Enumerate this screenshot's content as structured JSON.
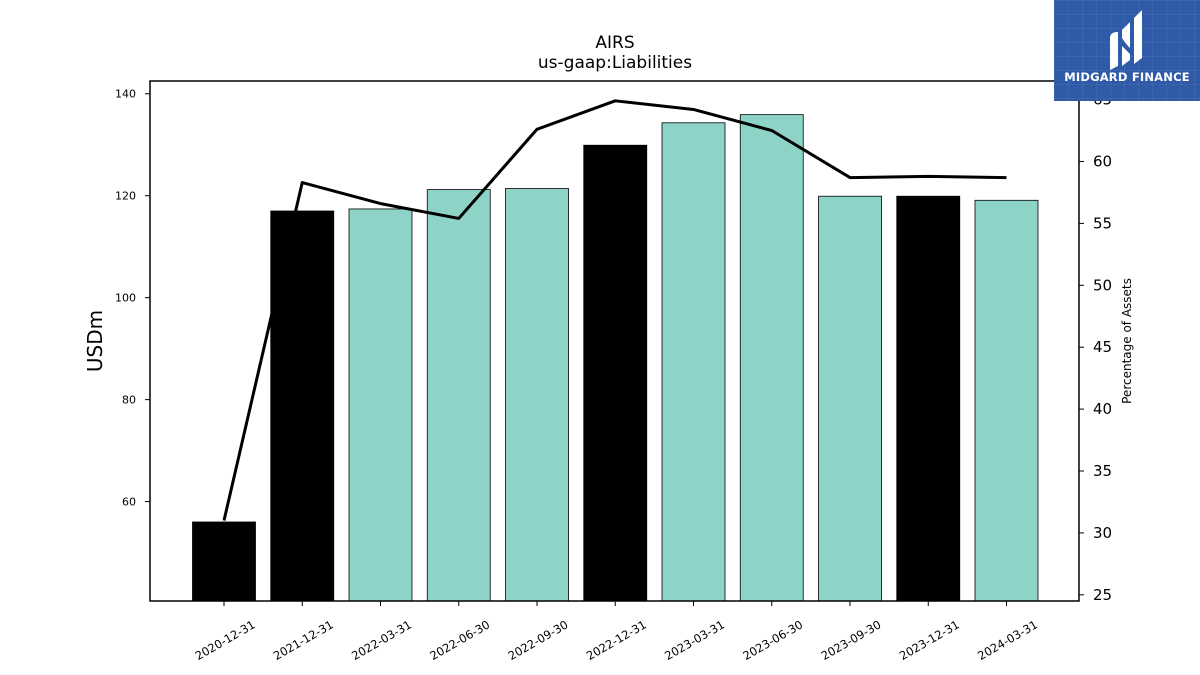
{
  "chart_data": {
    "type": "bar",
    "title": "AIRS",
    "subtitle": "us-gaap:Liabilities",
    "ylabel": "USDm",
    "y2label": "Percentage of Assets",
    "ylim": [
      40.5,
      142.5
    ],
    "y2lim": [
      24.5,
      66.5
    ],
    "yticks": [
      60,
      80,
      100,
      120,
      140
    ],
    "y2ticks": [
      25,
      30,
      35,
      40,
      45,
      50,
      55,
      60,
      65
    ],
    "categories": [
      "2020-12-31",
      "2021-12-31",
      "2022-03-31",
      "2022-06-30",
      "2022-09-30",
      "2022-12-31",
      "2023-03-31",
      "2023-06-30",
      "2023-09-30",
      "2023-12-31",
      "2024-03-31"
    ],
    "series": [
      {
        "values": [
          56.0,
          117.0,
          117.4,
          121.2,
          121.4,
          129.9,
          134.3,
          135.9,
          119.9,
          119.9,
          119.1
        ],
        "bar_colors": [
          "#000000",
          "#000000",
          "#8dd3c7",
          "#8dd3c7",
          "#8dd3c7",
          "#000000",
          "#8dd3c7",
          "#8dd3c7",
          "#8dd3c7",
          "#000000",
          "#8dd3c7"
        ],
        "axis": "left"
      },
      {
        "type": "line",
        "values": [
          31.0,
          58.3,
          56.6,
          55.4,
          62.6,
          64.9,
          64.2,
          62.5,
          58.7,
          58.8,
          58.7
        ],
        "color": "#000000",
        "axis": "right"
      }
    ]
  },
  "logo": {
    "text": "MIDGARD FINANCE",
    "background": "#2f5aa8"
  }
}
